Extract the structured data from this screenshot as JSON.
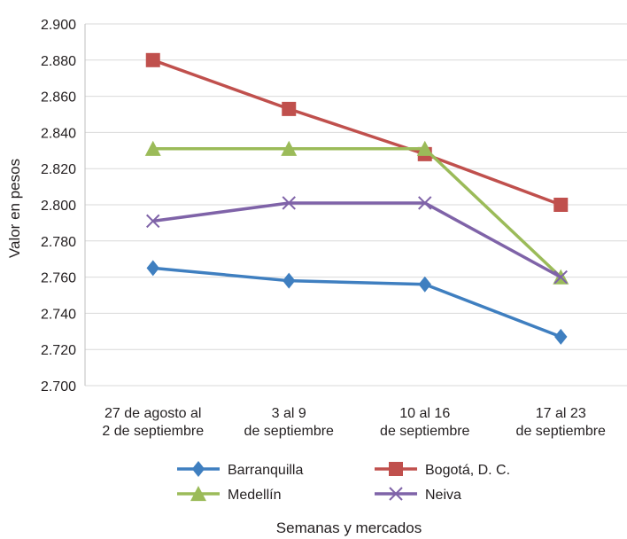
{
  "chart_data": {
    "type": "line",
    "title": "",
    "xlabel": "Semanas y mercados",
    "ylabel": "Valor en pesos",
    "ylim": [
      2700,
      2900
    ],
    "ystep": 20,
    "ytick_labels": [
      "2.700",
      "2.720",
      "2.740",
      "2.760",
      "2.780",
      "2.800",
      "2.820",
      "2.840",
      "2.860",
      "2.880",
      "2.900"
    ],
    "categories": [
      [
        "27 de agosto al",
        "2 de septiembre"
      ],
      [
        "3 al 9",
        "de septiembre"
      ],
      [
        "10 al 16",
        "de septiembre"
      ],
      [
        "17 al 23",
        "de septiembre"
      ]
    ],
    "grid": true,
    "legend_position": "bottom",
    "series": [
      {
        "name": "Barranquilla",
        "color": "#3f7fc0",
        "marker": "diamond",
        "values": [
          2765,
          2758,
          2756,
          2727
        ]
      },
      {
        "name": "Bogotá, D. C.",
        "color": "#c0504d",
        "marker": "square",
        "values": [
          2880,
          2853,
          2828,
          2800
        ]
      },
      {
        "name": "Medellín",
        "color": "#9bbb59",
        "marker": "triangle",
        "values": [
          2831,
          2831,
          2831,
          2760
        ]
      },
      {
        "name": "Neiva",
        "color": "#7f63a8",
        "marker": "x",
        "values": [
          2791,
          2801,
          2801,
          2760
        ]
      }
    ]
  }
}
